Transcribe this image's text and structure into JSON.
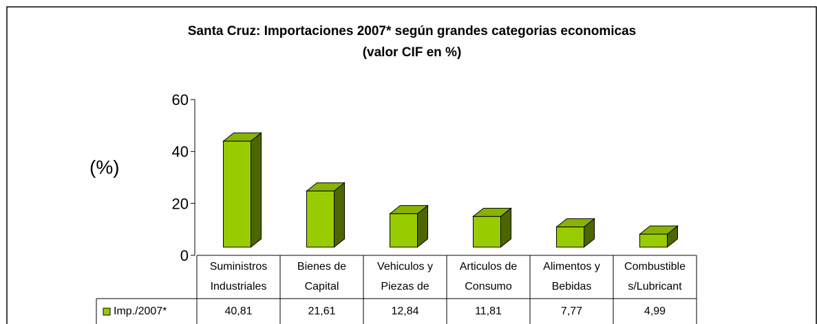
{
  "chart_data": {
    "type": "bar3d",
    "title": "Santa Cruz: Importaciones 2007* según grandes categorias economicas\n(valor CIF en %)",
    "y_label": "(%)",
    "categories": [
      "Suministros\nIndustriales",
      "Bienes de\nCapital",
      "Vehiculos y\nPiezas de",
      "Articulos de\nConsumo",
      "Alimentos y\nBebidas",
      "Combustible\ns/Lubricant"
    ],
    "series": [
      {
        "name": "Imp./2007*",
        "color": "#99cc00",
        "values": [
          40.81,
          21.61,
          12.84,
          11.81,
          7.77,
          4.99
        ],
        "value_labels": [
          "40,81",
          "21,61",
          "12,84",
          "11,81",
          "7,77",
          "4,99"
        ]
      }
    ],
    "ylim": [
      0,
      60
    ],
    "yticks": [
      0,
      20,
      40,
      60
    ],
    "grid": false
  }
}
